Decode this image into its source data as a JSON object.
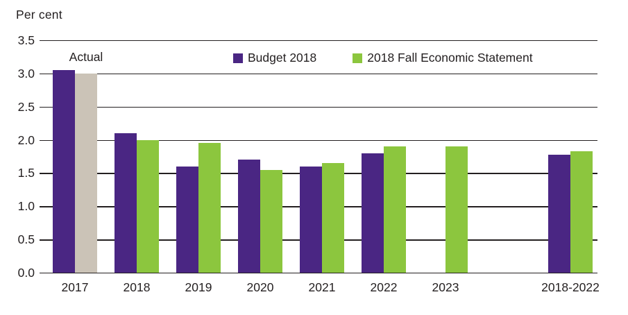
{
  "chart": {
    "unit_label": "Per cent",
    "annotation_actual": "Actual"
  },
  "legend": {
    "items": [
      {
        "label": "Budget 2018",
        "color": "#4A2683"
      },
      {
        "label": "2018 Fall Economic Statement",
        "color": "#8CC63E"
      }
    ]
  },
  "chart_data": {
    "type": "bar",
    "title": "",
    "ylabel": "Per cent",
    "xlabel": "",
    "ylim": [
      0,
      3.5
    ],
    "yticks": [
      0,
      0.5,
      1,
      1.5,
      2,
      2.5,
      3,
      3.5
    ],
    "grid": true,
    "legend_position": "top-inside",
    "categories": [
      "2017",
      "2018",
      "2019",
      "2020",
      "2021",
      "2022",
      "2023",
      "2018-2022"
    ],
    "series": [
      {
        "name": "Budget 2018",
        "color": "#4A2683",
        "slot": 0,
        "values": [
          3.05,
          2.1,
          1.6,
          1.7,
          1.6,
          1.8,
          null,
          1.78
        ]
      },
      {
        "name": "2018 Fall Economic Statement",
        "color": "#8CC63E",
        "slot": 1,
        "values": [
          null,
          2.0,
          1.95,
          1.55,
          1.65,
          1.9,
          1.9,
          1.83
        ]
      },
      {
        "name": "Actual",
        "color": "#CBC3B7",
        "slot": 1,
        "values": [
          3.0,
          null,
          null,
          null,
          null,
          null,
          null,
          null
        ]
      }
    ],
    "annotations": [
      {
        "text": "Actual",
        "category": "2017"
      }
    ]
  }
}
